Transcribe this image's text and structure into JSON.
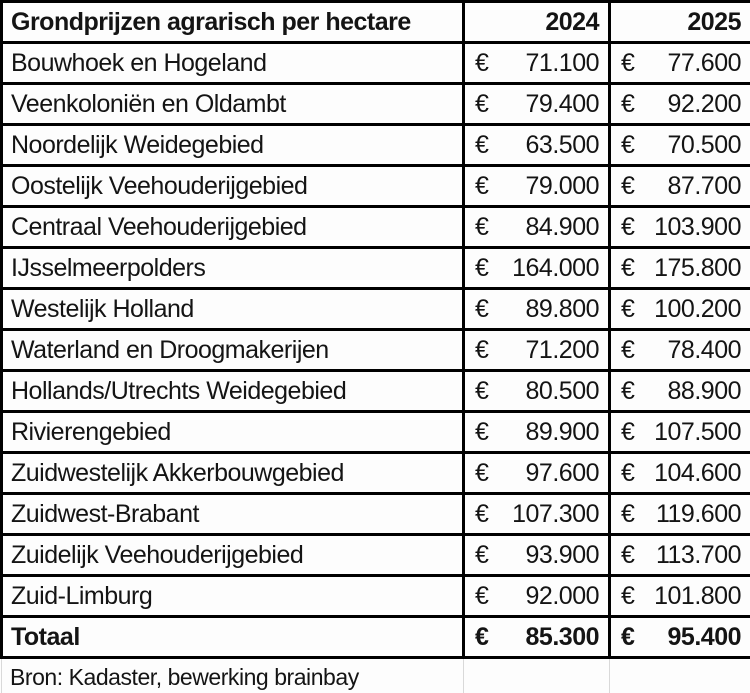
{
  "table": {
    "header": {
      "title": "Grondprijzen agrarisch per hectare",
      "col_2024": "2024",
      "col_2025": "2025"
    },
    "currency_symbol": "€",
    "rows": [
      {
        "label": "Bouwhoek en Hogeland",
        "y2024": "71.100",
        "y2025": "77.600"
      },
      {
        "label": "Veenkoloniën en Oldambt",
        "y2024": "79.400",
        "y2025": "92.200"
      },
      {
        "label": "Noordelijk Weidegebied",
        "y2024": "63.500",
        "y2025": "70.500"
      },
      {
        "label": "Oostelijk Veehouderijgebied",
        "y2024": "79.000",
        "y2025": "87.700"
      },
      {
        "label": "Centraal Veehouderijgebied",
        "y2024": "84.900",
        "y2025": "103.900"
      },
      {
        "label": "IJsselmeerpolders",
        "y2024": "164.000",
        "y2025": "175.800"
      },
      {
        "label": "Westelijk Holland",
        "y2024": "89.800",
        "y2025": "100.200"
      },
      {
        "label": "Waterland en Droogmakerijen",
        "y2024": "71.200",
        "y2025": "78.400"
      },
      {
        "label": "Hollands/Utrechts Weidegebied",
        "y2024": "80.500",
        "y2025": "88.900"
      },
      {
        "label": "Rivierengebied",
        "y2024": "89.900",
        "y2025": "107.500"
      },
      {
        "label": "Zuidwestelijk Akkerbouwgebied",
        "y2024": "97.600",
        "y2025": "104.600"
      },
      {
        "label": "Zuidwest-Brabant",
        "y2024": "107.300",
        "y2025": "119.600"
      },
      {
        "label": "Zuidelijk Veehouderijgebied",
        "y2024": "93.900",
        "y2025": "113.700"
      },
      {
        "label": "Zuid-Limburg",
        "y2024": "92.000",
        "y2025": "101.800"
      }
    ],
    "total_row": {
      "label": "Totaal",
      "y2024": "85.300",
      "y2025": "95.400"
    },
    "source_note": "Bron: Kadaster, bewerking brainbay"
  },
  "colors": {
    "border_strong": "#000000",
    "border_light": "#d9d9d9",
    "text": "#141414",
    "cell_background": "#fdfdfd"
  },
  "chart_data": {
    "type": "table",
    "title": "Grondprijzen agrarisch per hectare",
    "categories": [
      "Bouwhoek en Hogeland",
      "Veenkoloniën en Oldambt",
      "Noordelijk Weidegebied",
      "Oostelijk Veehouderijgebied",
      "Centraal Veehouderijgebied",
      "IJsselmeerpolders",
      "Westelijk Holland",
      "Waterland en Droogmakerijen",
      "Hollands/Utrechts Weidegebied",
      "Rivierengebied",
      "Zuidwestelijk Akkerbouwgebied",
      "Zuidwest-Brabant",
      "Zuidelijk Veehouderijgebied",
      "Zuid-Limburg"
    ],
    "series": [
      {
        "name": "2024",
        "values": [
          71100,
          79400,
          63500,
          79000,
          84900,
          164000,
          89800,
          71200,
          80500,
          89900,
          97600,
          107300,
          93900,
          92000
        ]
      },
      {
        "name": "2025",
        "values": [
          77600,
          92200,
          70500,
          87700,
          103900,
          175800,
          100200,
          78400,
          88900,
          107500,
          104600,
          119600,
          113700,
          101800
        ]
      }
    ],
    "total": {
      "name": "Totaal",
      "values": [
        85300,
        95400
      ]
    },
    "currency": "€",
    "source": "Bron: Kadaster, bewerking brainbay"
  }
}
